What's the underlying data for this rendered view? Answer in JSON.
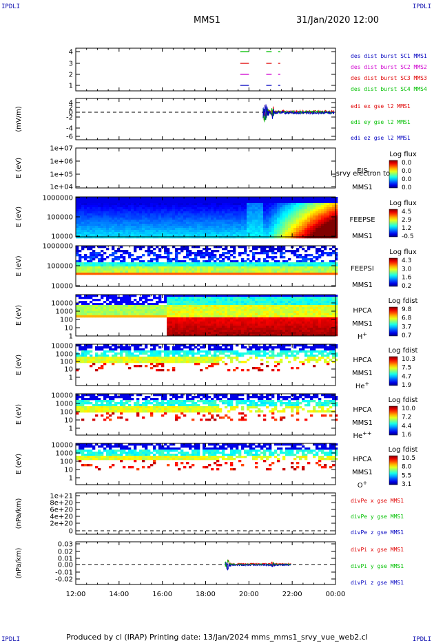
{
  "header": {
    "corner_left": "IPDLI",
    "corner_right": "IPDLI",
    "spacecraft": "MMS1",
    "datetime": "31/Jan/2020 12:00"
  },
  "footer": {
    "text": "Produced by cl (IRAP)   Printing date: 13/Jan/2024   mms_mms1_srvy_vue_web2.cl"
  },
  "time_axis": {
    "ticks": [
      "12:00",
      "14:00",
      "16:00",
      "18:00",
      "20:00",
      "22:00",
      "00:00"
    ],
    "start_hour": 12,
    "end_hour": 24
  },
  "colors": {
    "red": "#e00000",
    "green": "#00c000",
    "blue": "#0000c0",
    "magenta": "#d000d0"
  },
  "chart_data": [
    {
      "id": "des-burst",
      "type": "line",
      "yticks": [
        "4",
        "3",
        "2",
        "1"
      ],
      "ylim": [
        0.5,
        4.5
      ],
      "series": [
        {
          "name": "des dist burst SC1 MMS1",
          "color": "#0000c0",
          "y": 1,
          "intervals": [
            [
              19.6,
              20.0
            ],
            [
              20.8,
              21.05
            ],
            [
              21.35,
              21.45
            ]
          ]
        },
        {
          "name": "des dist burst SC2 MMS2",
          "color": "#d000d0",
          "y": 2,
          "intervals": [
            [
              19.6,
              20.0
            ],
            [
              20.8,
              21.05
            ],
            [
              21.35,
              21.45
            ]
          ]
        },
        {
          "name": "des dist burst SC3 MMS3",
          "color": "#e00000",
          "y": 3,
          "intervals": [
            [
              19.6,
              20.0
            ],
            [
              20.8,
              21.05
            ],
            [
              21.35,
              21.45
            ]
          ]
        },
        {
          "name": "des dist burst SC4 MMS4",
          "color": "#00c000",
          "y": 4,
          "intervals": [
            [
              19.6,
              20.0
            ],
            [
              20.8,
              21.05
            ],
            [
              21.35,
              21.45
            ]
          ]
        }
      ]
    },
    {
      "id": "edi-e",
      "type": "line",
      "ylabel": "(mV/m)",
      "yticks": [
        "4",
        "2",
        "0",
        "-2",
        "-4",
        "-6"
      ],
      "ylim": [
        -6,
        5
      ],
      "active_from": 20.65,
      "series": [
        {
          "name": "edi ex gse l2 MMS1",
          "color": "#e00000"
        },
        {
          "name": "edi ey gse l2 MMS1",
          "color": "#00c000"
        },
        {
          "name": "edi ez gse l2 MMS1",
          "color": "#0000c0"
        }
      ]
    },
    {
      "id": "eis",
      "type": "heatmap",
      "ylabel": "E (eV)",
      "yticks": [
        "1e+07",
        "1e+06",
        "1e+05",
        "1e+04"
      ],
      "instrument": "EIS",
      "spacecraft": "MMS1",
      "overlay_text": "l_srvy electron to",
      "cbar_title": "Log flux",
      "cbar_ticks": [
        "0.0",
        "0.0",
        "0.0",
        "0.0"
      ]
    },
    {
      "id": "feeps-e",
      "type": "heatmap",
      "ylabel": "E (eV)",
      "yticks": [
        "1000000",
        "100000",
        "10000"
      ],
      "instrument": "FEEPSE",
      "spacecraft": "MMS1",
      "cbar_title": "Log flux",
      "cbar_ticks": [
        "4.5",
        "2.9",
        "1.2",
        "-0.5"
      ]
    },
    {
      "id": "feeps-i",
      "type": "heatmap",
      "ylabel": "E (eV)",
      "yticks": [
        "1000000",
        "100000",
        "10000"
      ],
      "instrument": "FEEPSI",
      "spacecraft": "MMS1",
      "cbar_title": "Log flux",
      "cbar_ticks": [
        "4.3",
        "3.0",
        "1.6",
        "0.2"
      ]
    },
    {
      "id": "hpca-h",
      "type": "heatmap",
      "ylabel": "E (eV)",
      "yticks": [
        "10000",
        "1000",
        "100",
        "10",
        "1"
      ],
      "instrument": "HPCA",
      "spacecraft": "MMS1",
      "species": "H",
      "charge": "+",
      "cbar_title": "Log fdist",
      "cbar_ticks": [
        "9.8",
        "6.8",
        "3.7",
        "0.7"
      ]
    },
    {
      "id": "hpca-he",
      "type": "heatmap",
      "ylabel": "E (eV)",
      "yticks": [
        "10000",
        "1000",
        "100",
        "10",
        "1"
      ],
      "instrument": "HPCA",
      "spacecraft": "MMS1",
      "species": "He",
      "charge": "+",
      "cbar_title": "Log fdist",
      "cbar_ticks": [
        "10.3",
        "7.5",
        "4.7",
        "1.9"
      ]
    },
    {
      "id": "hpca-he2",
      "type": "heatmap",
      "ylabel": "E (eV)",
      "yticks": [
        "10000",
        "1000",
        "100",
        "10",
        "1"
      ],
      "instrument": "HPCA",
      "spacecraft": "MMS1",
      "species": "He",
      "charge": "++",
      "cbar_title": "Log fdist",
      "cbar_ticks": [
        "10.0",
        "7.2",
        "4.4",
        "1.6"
      ]
    },
    {
      "id": "hpca-o",
      "type": "heatmap",
      "ylabel": "E (eV)",
      "yticks": [
        "10000",
        "1000",
        "100",
        "10",
        "1"
      ],
      "instrument": "HPCA",
      "spacecraft": "MMS1",
      "species": "O",
      "charge": "+",
      "cbar_title": "Log fdist",
      "cbar_ticks": [
        "10.5",
        "8.0",
        "5.5",
        "3.1"
      ]
    },
    {
      "id": "divpe",
      "type": "line",
      "ylabel": "(nPa/km)",
      "yticks": [
        "1e+21",
        "8e+20",
        "6e+20",
        "4e+20",
        "2e+20",
        "0"
      ],
      "ylim": [
        -1e+20,
        1.05e+21
      ],
      "series": [
        {
          "name": "divPe x gse MMS1",
          "color": "#e00000"
        },
        {
          "name": "divPe y gse MMS1",
          "color": "#00c000"
        },
        {
          "name": "divPe z gse MMS1",
          "color": "#0000c0"
        }
      ]
    },
    {
      "id": "divpi",
      "type": "line",
      "ylabel": "(nPa/km)",
      "yticks": [
        "0.03",
        "0.02",
        "0.01",
        "0.00",
        "-0.01",
        "-0.02"
      ],
      "ylim": [
        -0.025,
        0.035
      ],
      "active_from": 18.9,
      "active_to": 21.95,
      "series": [
        {
          "name": "divPi x gse MMS1",
          "color": "#e00000"
        },
        {
          "name": "divPi y gse MMS1",
          "color": "#00c000"
        },
        {
          "name": "divPi z gse MMS1",
          "color": "#0000c0"
        }
      ]
    }
  ]
}
